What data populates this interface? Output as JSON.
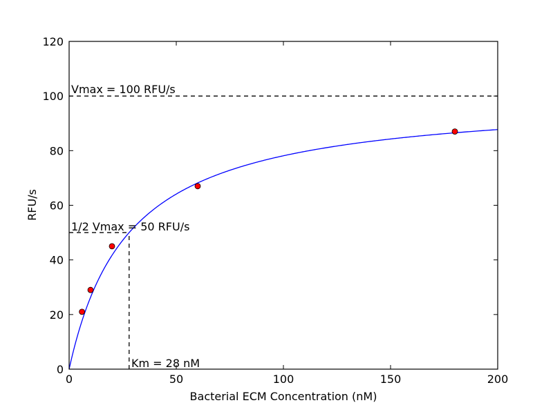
{
  "chart_data": {
    "type": "scatter",
    "title": "",
    "xlabel": "Bacterial ECM Concentration (nM)",
    "ylabel": "RFU/s",
    "xlim": [
      0,
      200
    ],
    "ylim": [
      0,
      120
    ],
    "xticks": [
      0,
      50,
      100,
      150,
      200
    ],
    "yticks": [
      0,
      20,
      40,
      60,
      80,
      100,
      120
    ],
    "grid": false,
    "legend": "none",
    "series": [
      {
        "kind": "points",
        "color": "#ff0000",
        "x": [
          6,
          10,
          20,
          60,
          180
        ],
        "y": [
          21,
          29,
          45,
          67,
          87
        ]
      },
      {
        "kind": "fit-curve",
        "model": "michaelis-menten",
        "vmax": 100,
        "km": 28,
        "color": "#0000ff"
      }
    ],
    "reference_lines": [
      {
        "orientation": "horizontal",
        "y": 100,
        "x_from": 0,
        "x_to": 200
      },
      {
        "orientation": "horizontal",
        "y": 50,
        "x_from": 0,
        "x_to": 28
      },
      {
        "orientation": "vertical",
        "x": 28,
        "y_from": 0,
        "y_to": 50
      }
    ],
    "annotations": {
      "vmax": "Vmax = 100 RFU/s",
      "half_vmax": "1/2 Vmax = 50 RFU/s",
      "km": "Km = 28 nM"
    }
  }
}
